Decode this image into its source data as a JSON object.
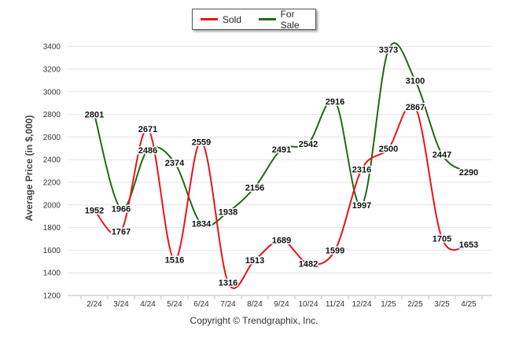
{
  "legend": {
    "sold_label": "Sold",
    "for_sale_label": "For Sale"
  },
  "copyright": "Copyright © Trendgraphix, Inc.",
  "colors": {
    "sold": "#e8141b",
    "for_sale": "#1e6b12",
    "grid": "#e4e4e4"
  },
  "chart_data": {
    "type": "line",
    "title": "",
    "xlabel": "",
    "ylabel": "Average Price (in $,000)",
    "categories": [
      "2/24",
      "3/24",
      "4/24",
      "5/24",
      "6/24",
      "7/24",
      "8/24",
      "9/24",
      "10/24",
      "11/24",
      "12/24",
      "1/25",
      "2/25",
      "3/25",
      "4/25"
    ],
    "yticks": [
      1200,
      1400,
      1600,
      1800,
      2000,
      2200,
      2400,
      2600,
      2800,
      3000,
      3200,
      3400
    ],
    "ylim": [
      1200,
      3450
    ],
    "grid": true,
    "legend_position": "top-center",
    "series": [
      {
        "name": "Sold",
        "color": "#e8141b",
        "values": [
          1952,
          1767,
          2671,
          1516,
          2559,
          1316,
          1513,
          1689,
          1482,
          1599,
          2316,
          2500,
          2867,
          1705,
          1653
        ]
      },
      {
        "name": "For Sale",
        "color": "#1e6b12",
        "values": [
          2801,
          1966,
          2486,
          2374,
          1834,
          1938,
          2156,
          2491,
          2542,
          2916,
          1997,
          3373,
          3100,
          2447,
          2290
        ]
      }
    ]
  }
}
